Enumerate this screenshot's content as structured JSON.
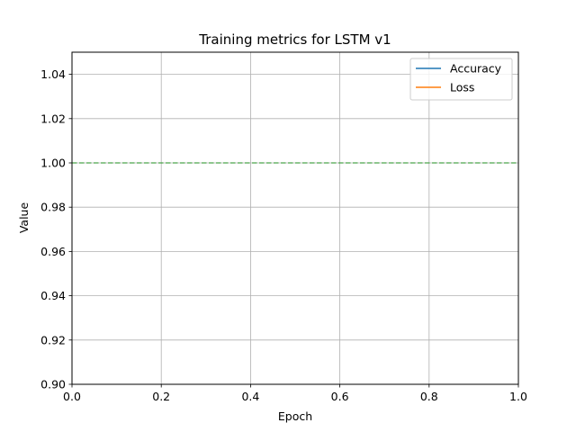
{
  "chart_data": {
    "type": "line",
    "title": "Training metrics for LSTM v1",
    "xlabel": "Epoch",
    "ylabel": "Value",
    "xlim": [
      0.0,
      1.0
    ],
    "ylim": [
      0.9,
      1.05
    ],
    "xticks": [
      "0.0",
      "0.2",
      "0.4",
      "0.6",
      "0.8",
      "1.0"
    ],
    "yticks": [
      "0.90",
      "0.92",
      "0.94",
      "0.96",
      "0.98",
      "1.00",
      "1.02",
      "1.04"
    ],
    "grid": true,
    "legend_position": "top-right",
    "series": [
      {
        "name": "Accuracy",
        "color": "#1f77b4",
        "x": [],
        "y": []
      },
      {
        "name": "Loss",
        "color": "#ff7f0e",
        "x": [],
        "y": []
      }
    ],
    "reference_lines": [
      {
        "orientation": "horizontal",
        "y": 1.0,
        "color": "#2ca02c",
        "style": "dashed"
      }
    ]
  }
}
